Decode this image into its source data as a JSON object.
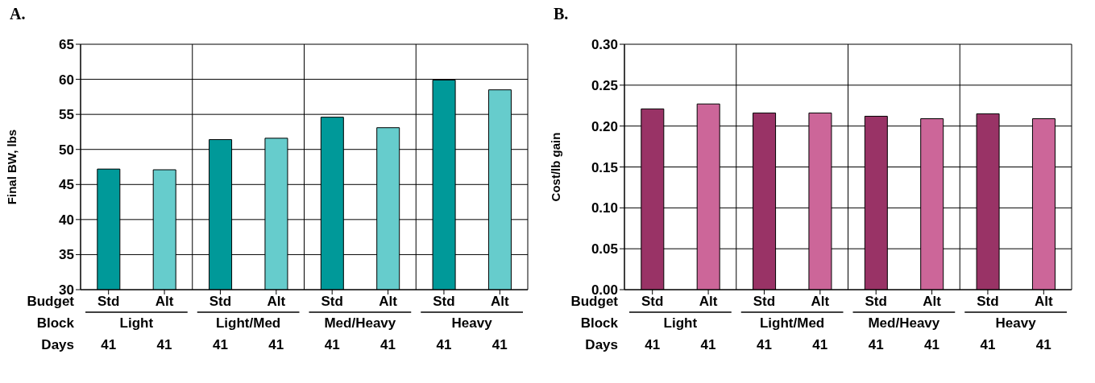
{
  "chart_data": [
    {
      "type": "bar",
      "title": "A.",
      "ylabel": "Final BW, lbs",
      "categories": [
        "Std",
        "Alt",
        "Std",
        "Alt",
        "Std",
        "Alt",
        "Std",
        "Alt"
      ],
      "values": [
        47.2,
        47.1,
        51.4,
        51.6,
        54.6,
        53.1,
        59.9,
        58.5
      ],
      "colors": [
        "#009999",
        "#66cccc",
        "#009999",
        "#66cccc",
        "#009999",
        "#66cccc",
        "#009999",
        "#66cccc"
      ],
      "ylim": [
        30,
        65
      ],
      "yticks": [
        30,
        35,
        40,
        45,
        50,
        55,
        60,
        65
      ],
      "grid": true,
      "legend": false,
      "annotations": [
        "Budget",
        "Block",
        "Days",
        "Light",
        "Light/Med",
        "Med/Heavy",
        "Heavy",
        "41",
        "41",
        "41",
        "41",
        "41",
        "41",
        "41",
        "41"
      ]
    },
    {
      "type": "bar",
      "title": "B.",
      "ylabel": "Cost/lb gain",
      "categories": [
        "Std",
        "Alt",
        "Std",
        "Alt",
        "Std",
        "Alt",
        "Std",
        "Alt"
      ],
      "values": [
        0.221,
        0.227,
        0.216,
        0.216,
        0.212,
        0.209,
        0.215,
        0.209
      ],
      "colors": [
        "#993366",
        "#cc6699",
        "#993366",
        "#cc6699",
        "#993366",
        "#cc6699",
        "#993366",
        "#cc6699"
      ],
      "ylim": [
        0,
        0.3
      ],
      "yticks": [
        {
          "value": 0,
          "label": "0.00"
        },
        {
          "value": 0.05,
          "label": "0.05"
        },
        {
          "value": 0.1,
          "label": "0.10"
        },
        {
          "value": 0.15,
          "label": "0.15"
        },
        {
          "value": 0.2,
          "label": "0.20"
        },
        {
          "value": 0.25,
          "label": "0.25"
        },
        {
          "value": 0.3,
          "label": "0.30"
        }
      ],
      "grid": true,
      "legend": false,
      "annotations": [
        "Budget",
        "Block",
        "Days",
        "Light",
        "Light/Med",
        "Med/Heavy",
        "Heavy",
        "41",
        "41",
        "41",
        "41",
        "41",
        "41",
        "41",
        "41"
      ]
    }
  ]
}
